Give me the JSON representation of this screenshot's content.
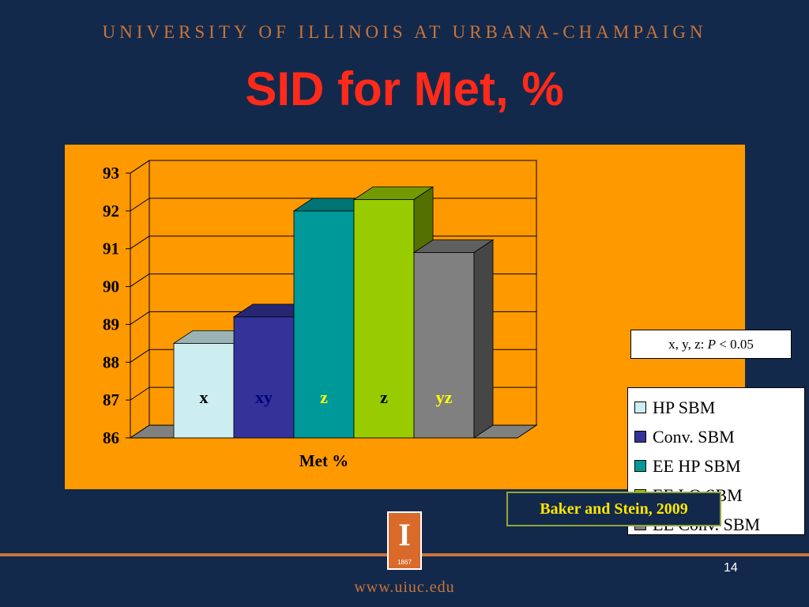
{
  "header": {
    "university": "UNIVERSITY OF ILLINOIS AT URBANA-CHAMPAIGN"
  },
  "slide": {
    "title": "SID for Met, %",
    "page_number": "14",
    "url": "www.uiuc.edu"
  },
  "logo": {
    "year": "1867",
    "icon": "illinois-block-i-icon"
  },
  "citation": "Baker and Stein, 2009",
  "significance": {
    "prefix": "x, y, z: ",
    "p_symbol": "P",
    "suffix": " < 0.05"
  },
  "chart_data": {
    "type": "bar",
    "style": "3d",
    "categories": [
      "HP SBM",
      "Conv. SBM",
      "EE HP SBM",
      "EE LO SBM",
      "EE Conv. SBM"
    ],
    "values": [
      88.5,
      89.2,
      92.0,
      92.3,
      90.9
    ],
    "data_labels": [
      "x",
      "xy",
      "z",
      "z",
      "yz"
    ],
    "xlabel": "Met %",
    "ylabel": "",
    "ylim": [
      86,
      93
    ],
    "yticks": [
      "86",
      "87",
      "88",
      "89",
      "90",
      "91",
      "92",
      "93"
    ],
    "grid": true,
    "legend_position": "right",
    "colors": [
      "#cdeef0",
      "#333399",
      "#009999",
      "#99cc00",
      "#808080"
    ],
    "label_colors": [
      "#000000",
      "#000080",
      "#ffff00",
      "#000000",
      "#ffff00"
    ]
  },
  "colors": {
    "background": "#13294b",
    "accent": "#c8743a",
    "title": "#ff2a1a",
    "panel": "#ff9900"
  }
}
